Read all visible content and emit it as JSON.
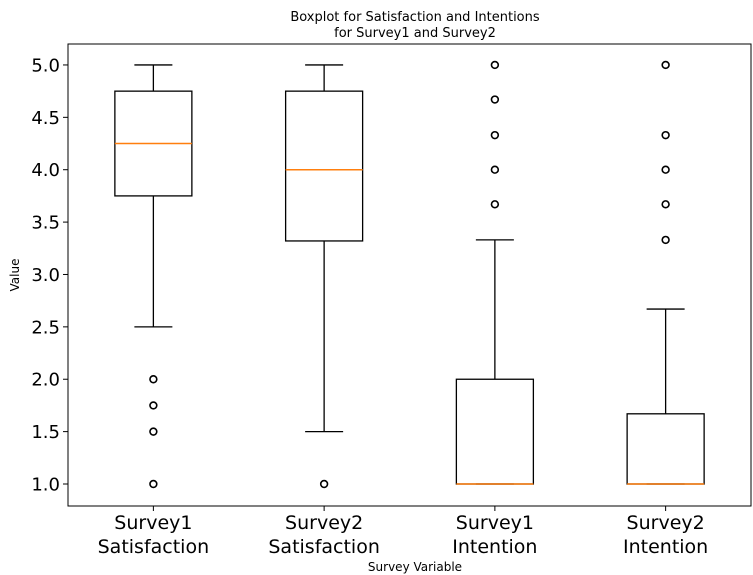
{
  "chart_data": {
    "type": "boxplot",
    "title": [
      "Boxplot for Satisfaction and Intentions",
      "for Survey1 and Survey2"
    ],
    "xlabel": "Survey Variable",
    "ylabel": "Value",
    "ylim": [
      0.79,
      5.2
    ],
    "yticks": [
      1.0,
      1.5,
      2.0,
      2.5,
      3.0,
      3.5,
      4.0,
      4.5,
      5.0
    ],
    "ytick_labels": [
      "1.0",
      "1.5",
      "2.0",
      "2.5",
      "3.0",
      "3.5",
      "4.0",
      "4.5",
      "5.0"
    ],
    "grid": false,
    "colors": {
      "box": "#000000",
      "median": "#ff7f0e",
      "flier": "#000000"
    },
    "categories": [
      [
        "Survey1",
        "Satisfaction"
      ],
      [
        "Survey2",
        "Satisfaction"
      ],
      [
        "Survey1",
        "Intention"
      ],
      [
        "Survey2",
        "Intention"
      ]
    ],
    "boxes": [
      {
        "whisker_low": 2.5,
        "q1": 3.75,
        "median": 4.25,
        "q3": 4.75,
        "whisker_high": 5.0,
        "fliers": [
          2.0,
          1.75,
          1.5,
          1.0
        ]
      },
      {
        "whisker_low": 1.5,
        "q1": 3.32,
        "median": 4.0,
        "q3": 4.75,
        "whisker_high": 5.0,
        "fliers": [
          1.0
        ]
      },
      {
        "whisker_low": 1.0,
        "q1": 1.0,
        "median": 1.0,
        "q3": 2.0,
        "whisker_high": 3.33,
        "fliers": [
          3.67,
          4.0,
          4.33,
          4.67,
          5.0
        ]
      },
      {
        "whisker_low": 1.0,
        "q1": 1.0,
        "median": 1.0,
        "q3": 1.67,
        "whisker_high": 2.67,
        "fliers": [
          3.33,
          3.67,
          4.0,
          4.33,
          5.0
        ]
      }
    ]
  }
}
